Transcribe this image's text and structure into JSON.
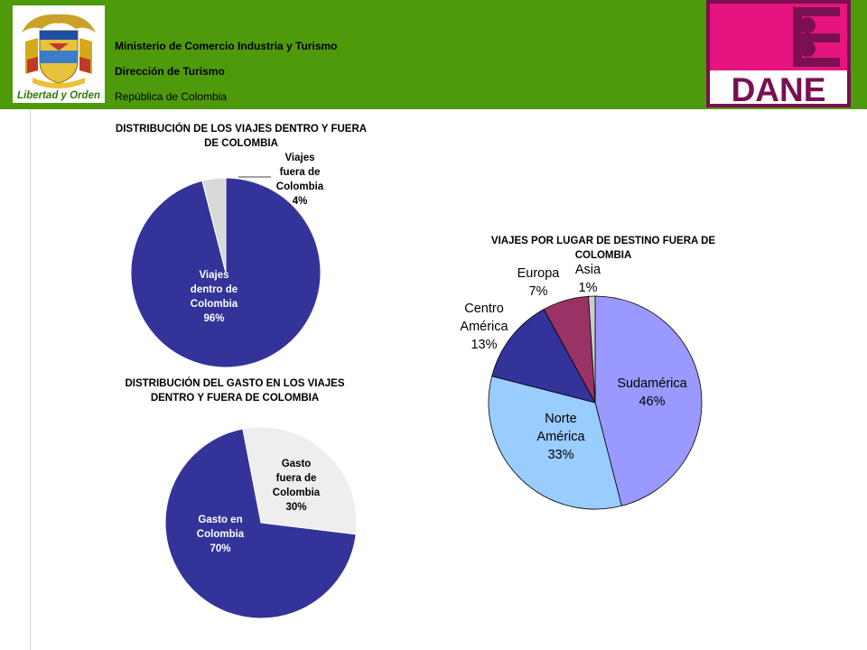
{
  "header": {
    "line1": "Ministerio de Comercio Industria y Turismo",
    "line2": "Dirección de Turismo",
    "line3": "República de Colombia",
    "logo_left_text": "Libertad y Orden",
    "logo_right_text": "DANE",
    "colors": {
      "band": "#4f9a0a",
      "dane": "#e6147e",
      "dane_border": "#7a1050"
    }
  },
  "chart_data": [
    {
      "type": "pie",
      "title": "DISTRIBUCIÓN DE LOS VIAJES DENTRO Y FUERA DE COLOMBIA",
      "slices": [
        {
          "lines": [
            "Viajes",
            "dentro de",
            "Colombia"
          ],
          "pct": "96%",
          "value": 96,
          "color": "#333399"
        },
        {
          "lines": [
            "Viajes",
            "fuera de",
            "Colombia"
          ],
          "pct": "4%",
          "value": 4,
          "color": "#d9d9d9"
        }
      ]
    },
    {
      "type": "pie",
      "title": "DISTRIBUCIÓN DEL GASTO EN LOS VIAJES DENTRO Y FUERA DE COLOMBIA",
      "slices": [
        {
          "lines": [
            "Gasto",
            "fuera de",
            "Colombia"
          ],
          "pct": "30%",
          "value": 30,
          "color": "#eeeeee"
        },
        {
          "lines": [
            "Gasto en",
            "Colombia"
          ],
          "pct": "70%",
          "value": 70,
          "color": "#333399"
        }
      ]
    },
    {
      "type": "pie",
      "title": "VIAJES POR LUGAR DE DESTINO FUERA DE COLOMBIA",
      "slices": [
        {
          "lines": [
            "Sudamérica"
          ],
          "pct": "46%",
          "value": 46,
          "color": "#9999ff"
        },
        {
          "lines": [
            "Norte",
            "América"
          ],
          "pct": "33%",
          "value": 33,
          "color": "#99ccff"
        },
        {
          "lines": [
            "Centro",
            "América"
          ],
          "pct": "13%",
          "value": 13,
          "color": "#333399"
        },
        {
          "lines": [
            "Europa"
          ],
          "pct": "7%",
          "value": 7,
          "color": "#993366"
        },
        {
          "lines": [
            "Asia"
          ],
          "pct": "1%",
          "value": 1,
          "color": "#cccccc"
        }
      ]
    }
  ]
}
